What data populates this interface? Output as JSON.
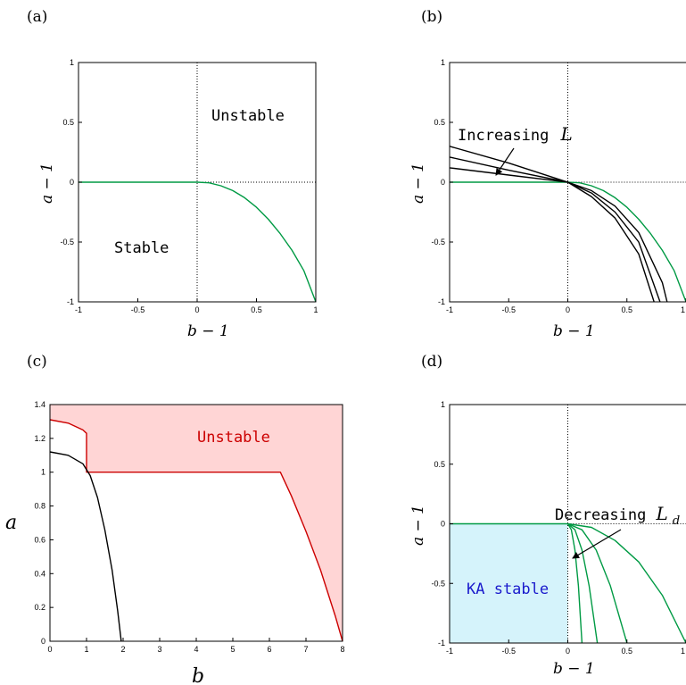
{
  "panels": {
    "a": {
      "label": "(a)",
      "xlabel": "b − 1",
      "ylabel": "a − 1",
      "unstable": "Unstable",
      "stable": "Stable"
    },
    "b": {
      "label": "(b)",
      "xlabel": "b − 1",
      "ylabel": "a − 1",
      "increasing": "Increasing",
      "L": "L"
    },
    "c": {
      "label": "(c)",
      "xlabel": "b",
      "ylabel": "a",
      "unstable": "Unstable"
    },
    "d": {
      "label": "(d)",
      "xlabel": "b − 1",
      "ylabel": "a − 1",
      "decreasing": "Decreasing",
      "Ld": "L",
      "Ld_sub": "d",
      "ka": "KA stable"
    }
  },
  "colors": {
    "green": "#009a44",
    "black": "#000000",
    "red": "#cc0000",
    "pink": "#ffd5d5",
    "cyan": "#d5f3fb",
    "blue": "#1a1acc"
  },
  "chart_data": [
    {
      "type": "line",
      "panel": "a",
      "xlabel": "b − 1",
      "ylabel": "a − 1",
      "xlim": [
        -1,
        1
      ],
      "ylim": [
        -1,
        1
      ],
      "xticks": [
        "-1",
        "-0.5",
        "0",
        "0.5",
        "1"
      ],
      "yticks": [
        "-1",
        "-0.5",
        "0",
        "0.5",
        "1"
      ],
      "annotations": [
        "Unstable",
        "Stable"
      ],
      "series": [
        {
          "color": "green",
          "style": "solid",
          "x": [
            -1,
            0,
            0.1,
            0.2,
            0.3,
            0.4,
            0.5,
            0.6,
            0.7,
            0.8,
            0.9,
            1.0
          ],
          "y": [
            0,
            0,
            -0.005,
            -0.03,
            -0.07,
            -0.13,
            -0.21,
            -0.31,
            -0.43,
            -0.57,
            -0.74,
            -1.0
          ]
        }
      ]
    },
    {
      "type": "line",
      "panel": "b",
      "xlabel": "b − 1",
      "ylabel": "a − 1",
      "xlim": [
        -1,
        1
      ],
      "ylim": [
        -1,
        1
      ],
      "xticks": [
        "-1",
        "-0.5",
        "0",
        "0.5",
        "1"
      ],
      "yticks": [
        "-1",
        "-0.5",
        "0",
        "0.5",
        "1"
      ],
      "annotations": [
        "Increasing L"
      ],
      "series": [
        {
          "color": "green",
          "style": "solid",
          "x": [
            -1,
            0,
            0.1,
            0.2,
            0.3,
            0.4,
            0.5,
            0.6,
            0.7,
            0.8,
            0.9,
            1.0
          ],
          "y": [
            0,
            0,
            -0.005,
            -0.03,
            -0.07,
            -0.13,
            -0.21,
            -0.31,
            -0.43,
            -0.57,
            -0.74,
            -1.0
          ]
        },
        {
          "color": "black",
          "style": "solid",
          "x": [
            -1,
            -0.5,
            0,
            0.2,
            0.4,
            0.6,
            0.8,
            0.84
          ],
          "y": [
            0.12,
            0.06,
            0,
            -0.07,
            -0.2,
            -0.42,
            -0.84,
            -1.0
          ]
        },
        {
          "color": "black",
          "style": "solid",
          "x": [
            -1,
            -0.5,
            0,
            0.2,
            0.4,
            0.6,
            0.78
          ],
          "y": [
            0.21,
            0.1,
            0,
            -0.09,
            -0.25,
            -0.5,
            -1.0
          ]
        },
        {
          "color": "black",
          "style": "solid",
          "x": [
            -1,
            -0.5,
            0,
            0.2,
            0.4,
            0.6,
            0.73
          ],
          "y": [
            0.3,
            0.16,
            0,
            -0.12,
            -0.3,
            -0.6,
            -1.0
          ]
        }
      ]
    },
    {
      "type": "area",
      "panel": "c",
      "xlabel": "b",
      "ylabel": "a",
      "xlim": [
        0,
        8
      ],
      "ylim": [
        0,
        1.4
      ],
      "xticks": [
        "0",
        "1",
        "2",
        "3",
        "4",
        "5",
        "6",
        "7",
        "8"
      ],
      "yticks": [
        "0",
        "0.2",
        "0.4",
        "0.6",
        "0.8",
        "1",
        "1.2",
        "1.4"
      ],
      "annotations": [
        "Unstable"
      ],
      "series": [
        {
          "color": "red",
          "style": "solid",
          "fill": "pink",
          "x": [
            0,
            0.5,
            0.9,
            1.0,
            1.0,
            6.3,
            6.6,
            7.0,
            7.4,
            7.8,
            8.0
          ],
          "y": [
            1.31,
            1.29,
            1.25,
            1.23,
            1.0,
            1.0,
            0.86,
            0.65,
            0.42,
            0.15,
            0
          ]
        },
        {
          "color": "black",
          "style": "solid",
          "x": [
            0,
            0.5,
            0.9,
            1.1,
            1.3,
            1.5,
            1.7,
            1.85,
            1.95
          ],
          "y": [
            1.12,
            1.1,
            1.05,
            0.98,
            0.85,
            0.66,
            0.42,
            0.18,
            0
          ]
        }
      ]
    },
    {
      "type": "line",
      "panel": "d",
      "xlabel": "b − 1",
      "ylabel": "a − 1",
      "xlim": [
        -1,
        1
      ],
      "ylim": [
        -1,
        1
      ],
      "xticks": [
        "-1",
        "-0.5",
        "0",
        "0.5",
        "1"
      ],
      "yticks": [
        "-1",
        "-0.5",
        "0",
        "0.5",
        "1"
      ],
      "annotations": [
        "Decreasing Ld",
        "KA stable"
      ],
      "series": [
        {
          "color": "green",
          "style": "solid",
          "x": [
            -1,
            0
          ],
          "y": [
            0,
            0
          ]
        },
        {
          "color": "green",
          "style": "solid",
          "x": [
            0,
            0.03,
            0.06,
            0.09,
            0.12
          ],
          "y": [
            0,
            -0.05,
            -0.22,
            -0.52,
            -1.0
          ]
        },
        {
          "color": "green",
          "style": "solid",
          "x": [
            0,
            0.06,
            0.12,
            0.18,
            0.25
          ],
          "y": [
            0,
            -0.05,
            -0.22,
            -0.52,
            -1.0
          ]
        },
        {
          "color": "green",
          "style": "solid",
          "x": [
            0,
            0.12,
            0.24,
            0.36,
            0.5
          ],
          "y": [
            0,
            -0.05,
            -0.22,
            -0.52,
            -1.0
          ]
        },
        {
          "color": "green",
          "style": "solid",
          "x": [
            0,
            0.2,
            0.4,
            0.6,
            0.8,
            1.0
          ],
          "y": [
            0,
            -0.03,
            -0.14,
            -0.32,
            -0.6,
            -1.0
          ]
        }
      ]
    }
  ]
}
